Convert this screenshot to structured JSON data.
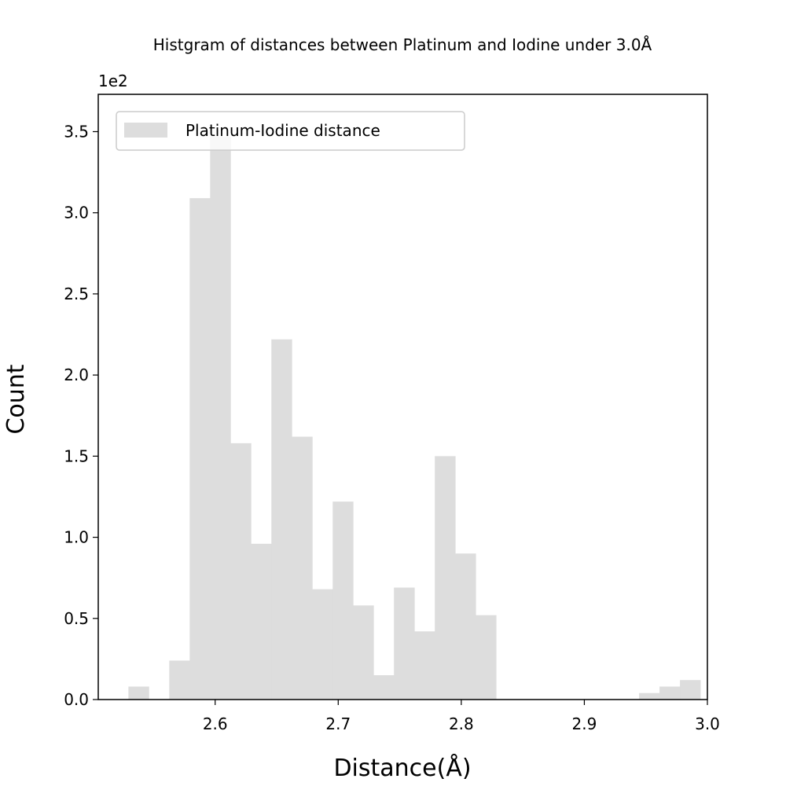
{
  "chart_data": {
    "type": "bar",
    "title": "Histgram of distances between Platinum and Iodine under 3.0Å",
    "xlabel": "Distance(Å)",
    "ylabel": "Count",
    "y_offset_label": "1e2",
    "xlim": [
      2.505,
      3.0
    ],
    "ylim": [
      0,
      3.73
    ],
    "x_ticks": [
      "2.6",
      "2.7",
      "2.8",
      "2.9",
      "3.0"
    ],
    "x_tick_values": [
      2.6,
      2.7,
      2.8,
      2.9,
      3.0
    ],
    "y_ticks": [
      "0.0",
      "0.5",
      "1.0",
      "1.5",
      "2.0",
      "2.5",
      "3.0",
      "3.5"
    ],
    "y_tick_values": [
      0.0,
      0.5,
      1.0,
      1.5,
      2.0,
      2.5,
      3.0,
      3.5
    ],
    "grid": false,
    "legend_position": "top-left",
    "series": [
      {
        "name": "Platinum-Iodine distance",
        "color": "#dddddd",
        "bin_width": 0.0166,
        "bin_left_edges": [
          2.5295,
          2.5461,
          2.5627,
          2.5793,
          2.5959,
          2.6125,
          2.6291,
          2.6457,
          2.6623,
          2.6789,
          2.6955,
          2.7121,
          2.7287,
          2.7453,
          2.7619,
          2.7785,
          2.7951,
          2.8117,
          2.8283,
          2.8449,
          2.8615,
          2.8781,
          2.8947,
          2.9113,
          2.9279,
          2.9445,
          2.9611,
          2.9777
        ],
        "values": [
          0.08,
          0.0,
          0.24,
          3.09,
          3.47,
          1.58,
          0.96,
          2.22,
          1.62,
          0.68,
          1.22,
          0.58,
          0.15,
          0.69,
          0.42,
          1.5,
          0.9,
          0.52,
          0.0,
          0.0,
          0.0,
          0.0,
          0.0,
          0.0,
          0.0,
          0.04,
          0.08,
          0.12
        ]
      }
    ]
  }
}
